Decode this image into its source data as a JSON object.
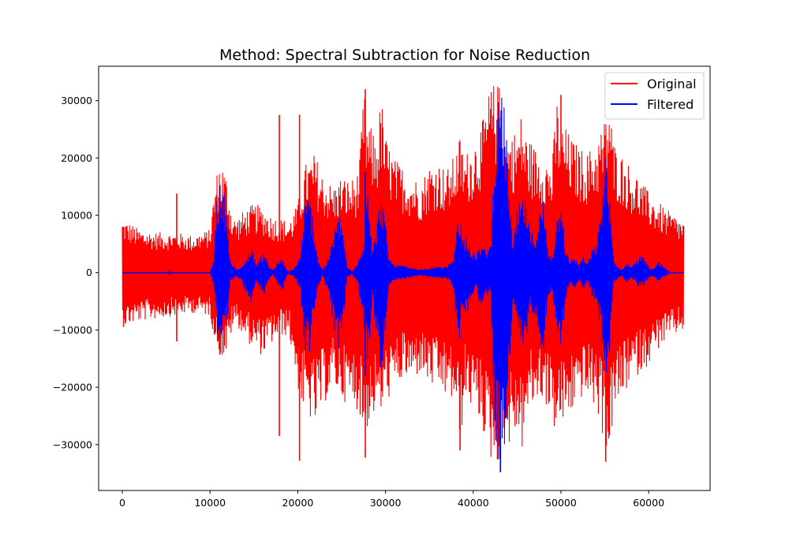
{
  "chart_data": {
    "type": "line",
    "title": "Method: Spectral Subtraction for Noise Reduction",
    "xlabel": "",
    "ylabel": "",
    "xlim": [
      -2700,
      67000
    ],
    "ylim": [
      -38000,
      36000
    ],
    "x_ticks": [
      0,
      10000,
      20000,
      30000,
      40000,
      50000,
      60000
    ],
    "x_tick_labels": [
      "0",
      "10000",
      "20000",
      "30000",
      "40000",
      "50000",
      "60000"
    ],
    "y_ticks": [
      -30000,
      -20000,
      -10000,
      0,
      10000,
      20000,
      30000
    ],
    "y_tick_labels": [
      "−30000",
      "−20000",
      "−10000",
      "0",
      "10000",
      "20000",
      "30000"
    ],
    "grid": false,
    "legend_position": "top-right",
    "series": [
      {
        "name": "Original",
        "color": "#ff0000",
        "x": [
          0,
          2000,
          4000,
          6000,
          8000,
          10000,
          10500,
          11000,
          11500,
          12000,
          12500,
          13000,
          14000,
          15000,
          16000,
          17000,
          18000,
          19000,
          20000,
          20500,
          21000,
          21500,
          22000,
          22500,
          23000,
          24000,
          25000,
          26000,
          27000,
          27500,
          28000,
          29000,
          29500,
          30000,
          31000,
          32000,
          33000,
          34000,
          35000,
          36000,
          37000,
          38000,
          38500,
          39000,
          40000,
          41000,
          42000,
          42500,
          43000,
          43500,
          44000,
          45000,
          45500,
          46000,
          47000,
          48000,
          49000,
          49500,
          50000,
          51000,
          52000,
          53000,
          54000,
          55000,
          55500,
          56000,
          57000,
          58000,
          59000,
          60000,
          61000,
          62000,
          63000,
          64000
        ],
        "upper": [
          9500,
          7500,
          7000,
          7000,
          6500,
          7500,
          15000,
          19500,
          19000,
          16000,
          10000,
          9500,
          11000,
          12000,
          11500,
          10000,
          9500,
          9000,
          12000,
          16500,
          19500,
          20000,
          21000,
          18000,
          17000,
          15000,
          17000,
          16000,
          18000,
          32000,
          26000,
          24000,
          31000,
          24000,
          20000,
          18500,
          17000,
          16000,
          19000,
          19500,
          18000,
          21000,
          24000,
          20500,
          23000,
          26000,
          33000,
          33000,
          33000,
          24000,
          24500,
          25000,
          28000,
          24500,
          22000,
          21000,
          19000,
          31000,
          27000,
          24000,
          22000,
          21000,
          23000,
          27000,
          31000,
          23000,
          20500,
          18500,
          16500,
          14000,
          12500,
          11000,
          10000,
          9000
        ],
        "lower": [
          -9500,
          -8500,
          -8000,
          -7500,
          -7000,
          -7500,
          -11500,
          -14500,
          -15000,
          -14000,
          -10000,
          -9000,
          -11500,
          -13500,
          -14500,
          -12500,
          -11000,
          -11000,
          -20000,
          -24000,
          -25000,
          -26000,
          -27000,
          -25000,
          -23000,
          -20000,
          -22000,
          -23500,
          -24000,
          -29000,
          -27000,
          -24000,
          -25000,
          -22500,
          -21000,
          -18500,
          -19000,
          -17500,
          -20000,
          -20500,
          -22000,
          -23000,
          -31000,
          -22000,
          -24000,
          -27000,
          -33000,
          -33000,
          -33000,
          -27000,
          -31000,
          -28000,
          -32000,
          -26000,
          -23000,
          -22000,
          -26000,
          -29000,
          -27000,
          -25500,
          -22000,
          -22000,
          -24000,
          -30000,
          -32500,
          -25000,
          -22000,
          -19000,
          -17500,
          -16000,
          -13500,
          -12000,
          -11000,
          -10000
        ],
        "spikes": [
          {
            "x": 6200,
            "y": 13800
          },
          {
            "x": 6200,
            "y": -12000
          },
          {
            "x": 17900,
            "y": 27500
          },
          {
            "x": 17900,
            "y": -28500
          },
          {
            "x": 20200,
            "y": 27500
          },
          {
            "x": 20200,
            "y": -32800
          },
          {
            "x": 27700,
            "y": 32000
          },
          {
            "x": 27700,
            "y": -32300
          },
          {
            "x": 38500,
            "y": -31000
          },
          {
            "x": 50000,
            "y": 31000
          },
          {
            "x": 55100,
            "y": -33000
          }
        ]
      },
      {
        "name": "Filtered",
        "color": "#0000ff",
        "x": [
          0,
          5000,
          10000,
          10400,
          10800,
          11200,
          11600,
          12000,
          12300,
          13000,
          13600,
          14200,
          14700,
          15200,
          15700,
          16200,
          16700,
          17200,
          17800,
          18300,
          18800,
          19500,
          20300,
          20800,
          21300,
          21800,
          22300,
          22800,
          23500,
          24200,
          24800,
          25200,
          25600,
          26200,
          26800,
          27500,
          28000,
          28500,
          29000,
          29500,
          29900,
          30400,
          31000,
          32000,
          33000,
          34000,
          35000,
          36000,
          37000,
          37800,
          38300,
          38800,
          39300,
          39800,
          40300,
          40800,
          41400,
          42000,
          42500,
          43000,
          43500,
          44000,
          44500,
          45000,
          45500,
          46000,
          46500,
          47000,
          47500,
          48000,
          48500,
          49000,
          49500,
          50000,
          50500,
          51000,
          51500,
          52000,
          52500,
          53000,
          53500,
          54000,
          54500,
          55000,
          55500,
          56000,
          56500,
          57000,
          57500,
          58000,
          58500,
          59000,
          59500,
          60000,
          60500,
          61000,
          61500,
          62000,
          62500,
          63000,
          64000
        ],
        "upper": [
          0,
          0,
          0,
          2000,
          14000,
          15500,
          14000,
          10000,
          2000,
          500,
          1000,
          2500,
          5000,
          1500,
          2500,
          4000,
          1000,
          500,
          2000,
          2500,
          200,
          500,
          3000,
          12000,
          14000,
          9000,
          2500,
          500,
          2500,
          8000,
          10000,
          7500,
          1000,
          200,
          1500,
          6000,
          17500,
          4000,
          8000,
          15000,
          10000,
          2500,
          1500,
          1200,
          800,
          500,
          800,
          1000,
          1000,
          2500,
          12500,
          6000,
          7000,
          4000,
          3000,
          5000,
          4000,
          5000,
          26000,
          31000,
          31000,
          18000,
          4000,
          11000,
          13000,
          13000,
          7000,
          7000,
          10000,
          13000,
          4000,
          3000,
          9000,
          16000,
          4000,
          2000,
          3000,
          1500,
          3000,
          1500,
          4000,
          5000,
          10000,
          20000,
          15000,
          2000,
          1000,
          500,
          2000,
          1000,
          2000,
          3000,
          2500,
          1000,
          500,
          2000,
          1500,
          500,
          0,
          0,
          0
        ],
        "lower": [
          0,
          0,
          0,
          -2000,
          -11500,
          -12500,
          -11000,
          -8000,
          -2000,
          -500,
          -1500,
          -4000,
          -6000,
          -1500,
          -3000,
          -4500,
          -1200,
          -500,
          -2500,
          -3000,
          -200,
          -500,
          -3000,
          -14000,
          -14500,
          -8000,
          -3000,
          -500,
          -3500,
          -11000,
          -14000,
          -9000,
          -1000,
          -200,
          -2000,
          -9000,
          -17500,
          -4000,
          -12000,
          -18000,
          -12000,
          -3000,
          -1500,
          -1200,
          -800,
          -500,
          -800,
          -1000,
          -1000,
          -3000,
          -14500,
          -6000,
          -8000,
          -4000,
          -3000,
          -6000,
          -4000,
          -4000,
          -29000,
          -35000,
          -32000,
          -22000,
          -6000,
          -11000,
          -14000,
          -12000,
          -7000,
          -7000,
          -10000,
          -15000,
          -4000,
          -3500,
          -9000,
          -15000,
          -5000,
          -2000,
          -3000,
          -1500,
          -3000,
          -1500,
          -4000,
          -5000,
          -10000,
          -20000,
          -15000,
          -2000,
          -1000,
          -500,
          -2000,
          -1000,
          -2000,
          -2500,
          -2000,
          -1000,
          -500,
          -1500,
          -1000,
          -500,
          0,
          0,
          0
        ],
        "spikes": [
          {
            "x": 5400,
            "y": 400
          },
          {
            "x": 5400,
            "y": -400
          },
          {
            "x": 27700,
            "y": 17500
          },
          {
            "x": 27700,
            "y": -18000
          },
          {
            "x": 43100,
            "y": -34800
          },
          {
            "x": 55100,
            "y": 20000
          }
        ]
      }
    ]
  }
}
